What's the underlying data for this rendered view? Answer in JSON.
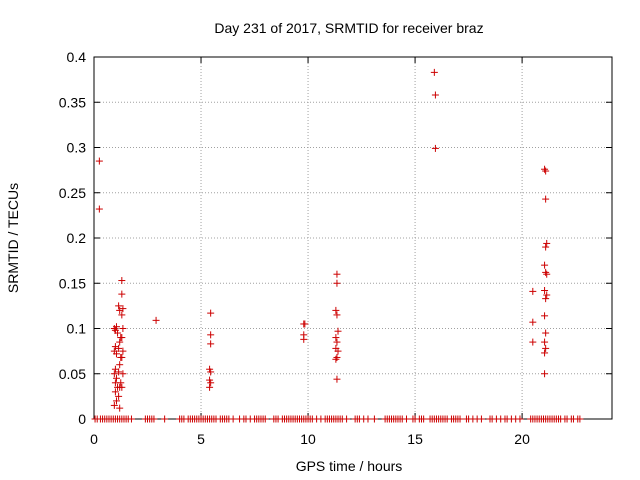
{
  "chart_data": {
    "type": "scatter",
    "title": "Day 231 of 2017, SRMTID for receiver braz",
    "xlabel": "GPS time / hours",
    "ylabel": "SRMTID / TECUs",
    "xlim": [
      0,
      24.2
    ],
    "ylim": [
      0,
      0.4
    ],
    "x_ticks": [
      0,
      5,
      10,
      15,
      20
    ],
    "x_tick_labels": [
      "0",
      "5",
      "10",
      "15",
      "20"
    ],
    "y_ticks": [
      0,
      0.05,
      0.1,
      0.15,
      0.2,
      0.25,
      0.3,
      0.35,
      0.4
    ],
    "y_tick_labels": [
      "0",
      "0.05",
      "0.1",
      "0.15",
      "0.2",
      "0.25",
      "0.3",
      "0.35",
      "0.4"
    ],
    "grid": true,
    "marker": "+",
    "color": "#cc0000",
    "series": [
      {
        "name": "SRMTID",
        "points": [
          [
            0.25,
            0.285
          ],
          [
            0.25,
            0.232
          ],
          [
            0.95,
            0.1
          ],
          [
            1.0,
            0.098
          ],
          [
            1.05,
            0.102
          ],
          [
            1.1,
            0.095
          ],
          [
            1.0,
            0.08
          ],
          [
            0.95,
            0.075
          ],
          [
            1.05,
            0.072
          ],
          [
            1.0,
            0.055
          ],
          [
            0.95,
            0.05
          ],
          [
            1.05,
            0.045
          ],
          [
            1.0,
            0.04
          ],
          [
            1.1,
            0.035
          ],
          [
            1.0,
            0.03
          ],
          [
            1.05,
            0.02
          ],
          [
            0.95,
            0.015
          ],
          [
            1.15,
            0.125
          ],
          [
            1.2,
            0.12
          ],
          [
            1.25,
            0.09
          ],
          [
            1.2,
            0.085
          ],
          [
            1.15,
            0.078
          ],
          [
            1.25,
            0.068
          ],
          [
            1.2,
            0.06
          ],
          [
            1.15,
            0.052
          ],
          [
            1.25,
            0.04
          ],
          [
            1.2,
            0.035
          ],
          [
            1.15,
            0.025
          ],
          [
            1.2,
            0.012
          ],
          [
            1.3,
            0.153
          ],
          [
            1.3,
            0.138
          ],
          [
            1.35,
            0.122
          ],
          [
            1.3,
            0.115
          ],
          [
            1.35,
            0.1
          ],
          [
            1.3,
            0.09
          ],
          [
            1.35,
            0.075
          ],
          [
            1.3,
            0.068
          ],
          [
            1.35,
            0.05
          ],
          [
            1.3,
            0.035
          ],
          [
            2.9,
            0.109
          ],
          [
            5.45,
            0.117
          ],
          [
            5.45,
            0.093
          ],
          [
            5.45,
            0.083
          ],
          [
            5.4,
            0.055
          ],
          [
            5.45,
            0.052
          ],
          [
            5.4,
            0.043
          ],
          [
            5.45,
            0.04
          ],
          [
            5.4,
            0.035
          ],
          [
            9.8,
            0.105
          ],
          [
            9.85,
            0.105
          ],
          [
            9.8,
            0.093
          ],
          [
            9.8,
            0.088
          ],
          [
            11.35,
            0.16
          ],
          [
            11.35,
            0.15
          ],
          [
            11.3,
            0.12
          ],
          [
            11.35,
            0.115
          ],
          [
            11.4,
            0.097
          ],
          [
            11.3,
            0.09
          ],
          [
            11.35,
            0.085
          ],
          [
            11.3,
            0.078
          ],
          [
            11.4,
            0.075
          ],
          [
            11.35,
            0.068
          ],
          [
            11.3,
            0.066
          ],
          [
            11.35,
            0.044
          ],
          [
            15.9,
            0.383
          ],
          [
            15.95,
            0.358
          ],
          [
            15.95,
            0.299
          ],
          [
            20.5,
            0.141
          ],
          [
            20.5,
            0.107
          ],
          [
            20.5,
            0.085
          ],
          [
            21.05,
            0.276
          ],
          [
            21.1,
            0.274
          ],
          [
            21.1,
            0.243
          ],
          [
            21.15,
            0.194
          ],
          [
            21.1,
            0.19
          ],
          [
            21.05,
            0.17
          ],
          [
            21.1,
            0.162
          ],
          [
            21.15,
            0.16
          ],
          [
            21.05,
            0.142
          ],
          [
            21.15,
            0.137
          ],
          [
            21.1,
            0.133
          ],
          [
            21.05,
            0.114
          ],
          [
            21.1,
            0.095
          ],
          [
            21.05,
            0.085
          ],
          [
            21.1,
            0.078
          ],
          [
            21.05,
            0.073
          ],
          [
            21.05,
            0.05
          ]
        ],
        "zero_times": [
          0.05,
          0.15,
          0.3,
          0.4,
          0.5,
          0.6,
          0.7,
          0.8,
          0.9,
          1.0,
          1.1,
          1.2,
          1.3,
          1.4,
          1.5,
          1.6,
          1.75,
          2.4,
          2.5,
          2.6,
          2.7,
          2.8,
          3.3,
          4.0,
          4.1,
          4.2,
          4.4,
          4.5,
          4.6,
          4.7,
          4.8,
          4.9,
          5.0,
          5.1,
          5.2,
          5.3,
          5.4,
          5.5,
          5.6,
          5.7,
          5.9,
          6.0,
          6.1,
          6.2,
          6.3,
          6.5,
          6.8,
          7.0,
          7.1,
          7.3,
          7.5,
          7.6,
          7.7,
          7.8,
          7.9,
          8.0,
          8.4,
          8.5,
          8.6,
          8.8,
          8.9,
          9.0,
          9.1,
          9.2,
          9.3,
          9.4,
          9.5,
          9.6,
          9.7,
          9.8,
          9.9,
          10.0,
          10.1,
          10.2,
          10.4,
          10.6,
          10.8,
          10.9,
          11.0,
          11.1,
          11.2,
          11.3,
          11.4,
          11.5,
          11.6,
          11.8,
          12.2,
          12.3,
          12.4,
          12.6,
          12.8,
          13.1,
          13.6,
          13.7,
          13.8,
          13.9,
          14.0,
          14.1,
          14.2,
          14.3,
          14.4,
          14.6,
          14.9,
          15.0,
          15.2,
          15.3,
          15.4,
          15.7,
          15.8,
          15.9,
          16.0,
          16.1,
          16.2,
          16.3,
          16.4,
          16.5,
          16.7,
          16.8,
          16.9,
          17.0,
          17.1,
          17.4,
          17.5,
          17.7,
          17.9,
          18.1,
          18.5,
          18.6,
          18.8,
          19.0,
          19.2,
          19.3,
          19.5,
          19.7,
          19.9,
          20.4,
          20.5,
          20.6,
          20.7,
          20.8,
          20.9,
          21.0,
          21.1,
          21.2,
          21.3,
          21.4,
          21.5,
          21.6,
          21.7,
          21.8,
          22.0,
          22.1,
          22.3,
          22.4,
          22.6,
          22.7
        ]
      }
    ]
  }
}
